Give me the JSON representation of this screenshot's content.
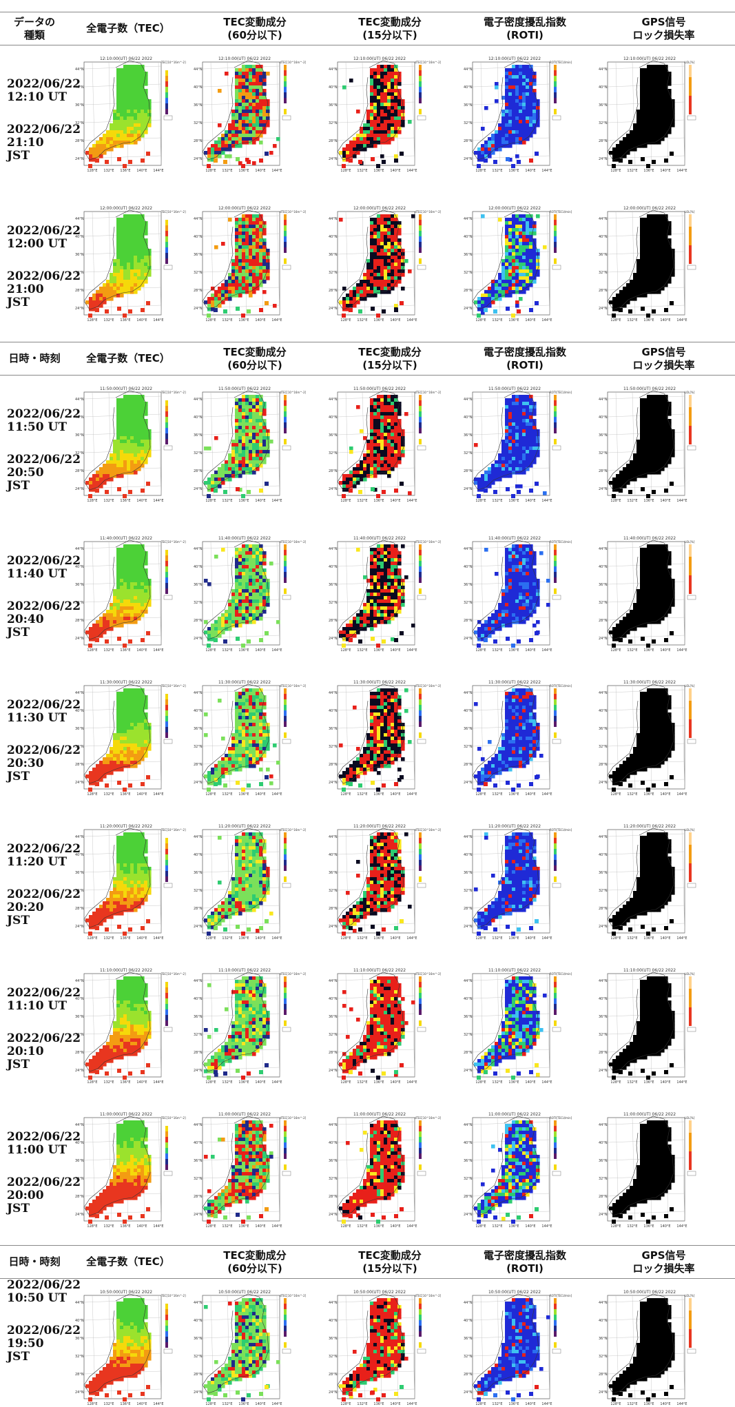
{
  "header_a": {
    "c0": "データの\n種類",
    "c1": "全電子数（TEC）",
    "c2": "TEC変動成分\n(60分以下)",
    "c3": "TEC変動成分\n(15分以下)",
    "c4": "電子密度擾乱指数\n(ROTI)",
    "c5": "GPS信号\nロック損失率"
  },
  "header_b": {
    "c0": "日時・時刻",
    "c1": "全電子数（TEC）",
    "c2": "TEC変動成分\n(60分以下)",
    "c3": "TEC変動成分\n(15分以下)",
    "c4": "電子密度擾乱指数\n(ROTI)",
    "c5": "GPS信号\nロック損失率"
  },
  "map_axes": {
    "lat": [
      "44°N",
      "40°N",
      "36°N",
      "32°N",
      "28°N",
      "24°N"
    ],
    "lon": [
      "128°E",
      "132°E",
      "136°E",
      "140°E",
      "144°E"
    ],
    "colorbar_tec": "TEC[10^16m^-2]",
    "colorbar_dtec": "dTEC[10^16m^-2]",
    "colorbar_roti": "ROTI[TECU/min]",
    "colorbar_lol": "LOL[%]"
  },
  "colors": {
    "rule": "#888888",
    "map_bg": "#ffffff"
  },
  "rows": [
    {
      "ut_date": "2022/06/22",
      "ut_time": "12:10 UT",
      "jst_date": "2022/06/22",
      "jst_time": "21:10 JST",
      "stamp": "12:10:00(UT) 06/22 2022",
      "tec_mix": 0.25,
      "d60": "mixed",
      "d15": "red-dark",
      "roti": "blue"
    },
    {
      "ut_date": "2022/06/22",
      "ut_time": "12:00 UT",
      "jst_date": "2022/06/22",
      "jst_time": "21:00 JST",
      "stamp": "12:00:00(UT) 06/22 2022",
      "tec_mix": 0.3,
      "d60": "mixed",
      "d15": "red-dark",
      "roti": "blue-mixed"
    },
    {
      "ut_date": "2022/06/22",
      "ut_time": "11:50 UT",
      "jst_date": "2022/06/22",
      "jst_time": "20:50 JST",
      "stamp": "11:50:00(UT) 06/22 2022",
      "tec_mix": 0.35,
      "d60": "green",
      "d15": "red-dark",
      "roti": "blue"
    },
    {
      "ut_date": "2022/06/22",
      "ut_time": "11:40 UT",
      "jst_date": "2022/06/22",
      "jst_time": "20:40 JST",
      "stamp": "11:40:00(UT) 06/22 2022",
      "tec_mix": 0.4,
      "d60": "green",
      "d15": "dark",
      "roti": "blue"
    },
    {
      "ut_date": "2022/06/22",
      "ut_time": "11:30 UT",
      "jst_date": "2022/06/22",
      "jst_time": "20:30 JST",
      "stamp": "11:30:00(UT) 06/22 2022",
      "tec_mix": 0.45,
      "d60": "green",
      "d15": "dark",
      "roti": "blue"
    },
    {
      "ut_date": "2022/06/22",
      "ut_time": "11:20 UT",
      "jst_date": "2022/06/22",
      "jst_time": "20:20 JST",
      "stamp": "11:20:00(UT) 06/22 2022",
      "tec_mix": 0.5,
      "d60": "green",
      "d15": "red-dark",
      "roti": "blue"
    },
    {
      "ut_date": "2022/06/22",
      "ut_time": "11:10 UT",
      "jst_date": "2022/06/22",
      "jst_time": "20:10 JST",
      "stamp": "11:10:00(UT) 06/22 2022",
      "tec_mix": 0.6,
      "d60": "green",
      "d15": "red",
      "roti": "blue-mixed"
    },
    {
      "ut_date": "2022/06/22",
      "ut_time": "11:00 UT",
      "jst_date": "2022/06/22",
      "jst_time": "20:00 JST",
      "stamp": "11:00:00(UT) 06/22 2022",
      "tec_mix": 0.7,
      "d60": "mixed",
      "d15": "red",
      "roti": "blue-mixed"
    },
    {
      "ut_date": "2022/06/22",
      "ut_time": "10:50 UT",
      "jst_date": "2022/06/22",
      "jst_time": "19:50 JST",
      "stamp": "10:50:00(UT) 06/22 2022",
      "tec_mix": 0.65,
      "d60": "green",
      "d15": "red",
      "roti": "blue"
    }
  ]
}
